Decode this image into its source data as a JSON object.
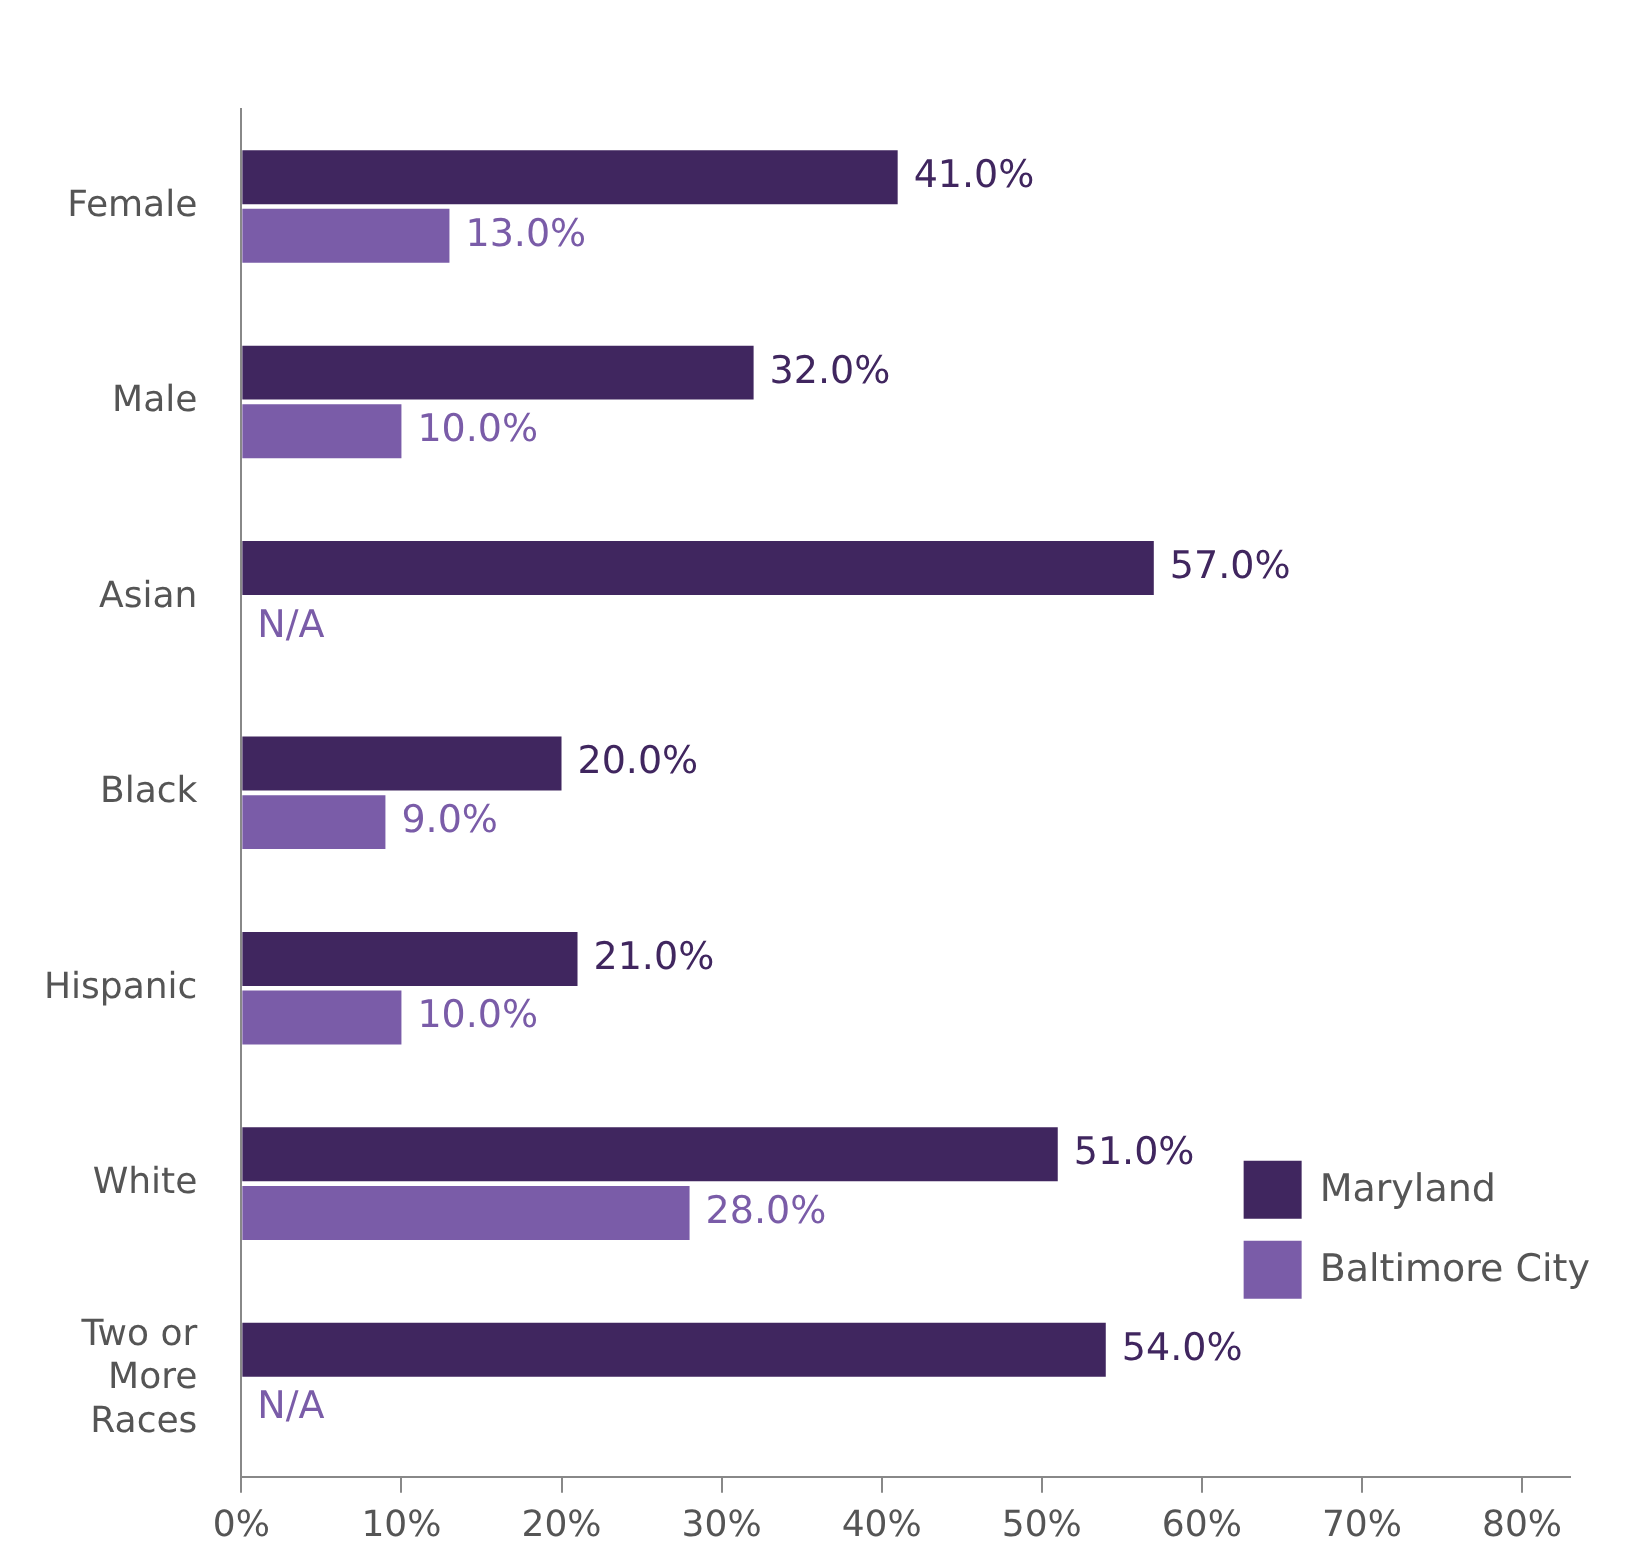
{
  "chart_data": {
    "type": "bar",
    "orientation": "horizontal",
    "categories": [
      "Female",
      "Male",
      "Asian",
      "Black",
      "Hispanic",
      "White",
      "Two or More Races"
    ],
    "series": [
      {
        "name": "Maryland",
        "color": "#40265f",
        "values": [
          41,
          32,
          57,
          20,
          21,
          51,
          54
        ],
        "value_labels": [
          "41.0%",
          "32.0%",
          "57.0%",
          "20.0%",
          "21.0%",
          "51.0%",
          "54.0%"
        ]
      },
      {
        "name": "Baltimore City",
        "color": "#7a5ca8",
        "values": [
          13,
          10,
          null,
          9,
          10,
          28,
          null
        ],
        "value_labels": [
          "13.0%",
          "10.0%",
          "N/A",
          "9.0%",
          "10.0%",
          "28.0%",
          "N/A"
        ]
      }
    ],
    "xlim": [
      0,
      83
    ],
    "xticks": [
      {
        "value": 0,
        "label": "0%"
      },
      {
        "value": 10,
        "label": "10%"
      },
      {
        "value": 20,
        "label": "20%"
      },
      {
        "value": 30,
        "label": "30%"
      },
      {
        "value": 40,
        "label": "40%"
      },
      {
        "value": 50,
        "label": "50%"
      },
      {
        "value": 60,
        "label": "60%"
      },
      {
        "value": 70,
        "label": "70%"
      },
      {
        "value": 80,
        "label": "80%"
      }
    ],
    "grid": false,
    "legend": "bottom right"
  }
}
